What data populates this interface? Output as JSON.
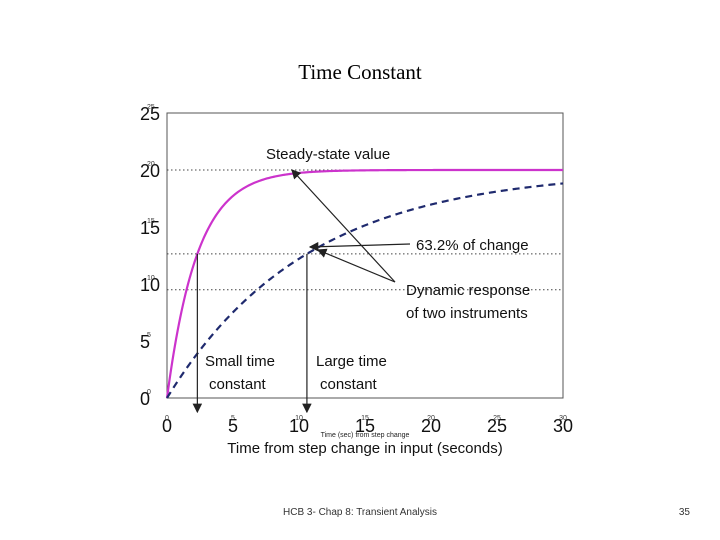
{
  "slide": {
    "title": "Time Constant",
    "footer": "HCB 3- Chap 8: Transient Analysis",
    "page_number": "35"
  },
  "chart_data": {
    "type": "line",
    "xlabel": "Time from step change in input (seconds)",
    "xlabel_small": "Time (sec) from step change",
    "ylabel": "",
    "xlim": [
      0,
      30
    ],
    "ylim": [
      0,
      25
    ],
    "x_ticks": [
      "0",
      "5",
      "10",
      "15",
      "20",
      "25",
      "30"
    ],
    "y_ticks": [
      "0",
      "5",
      "10",
      "15",
      "20",
      "25"
    ],
    "grid": false,
    "series": [
      {
        "color": "#cc33cc",
        "style": "solid",
        "tau": 2.3,
        "final": 20
      },
      {
        "color": "#1f2a6e",
        "style": "dashed",
        "tau": 10.6,
        "final": 20
      }
    ],
    "reference_lines": [
      {
        "y": 20,
        "style": "dotted"
      },
      {
        "y": 12.64,
        "style": "dotted"
      },
      {
        "y": 9.5,
        "style": "dotted"
      }
    ],
    "annotations": {
      "steady_state": "Steady-state value",
      "percent_change": "63.2% of change",
      "dynamic_response_line1": "Dynamic response",
      "dynamic_response_line2": "of two instruments",
      "small_tc_line1": "Small time",
      "small_tc_line2": "constant",
      "large_tc_line1": "Large time",
      "large_tc_line2": "constant"
    }
  }
}
